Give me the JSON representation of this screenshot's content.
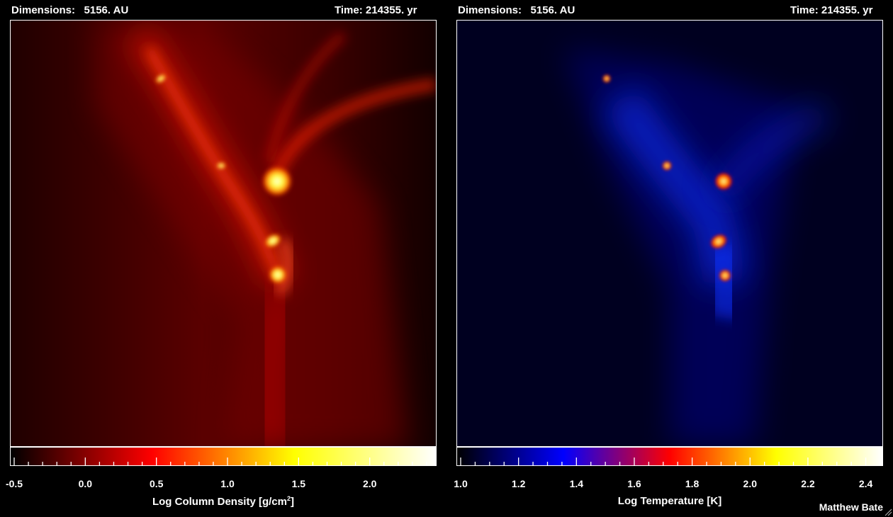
{
  "left_panel": {
    "dimensions_label": "Dimensions:",
    "dimensions_value": "5156. AU",
    "time_text": "Time: 214355. yr",
    "colorbar": {
      "min": -0.5,
      "max": 2.45,
      "tick_labels": [
        "-0.5",
        "0.0",
        "0.5",
        "1.0",
        "1.5",
        "2.0"
      ],
      "tick_values": [
        -0.5,
        0.0,
        0.5,
        1.0,
        1.5,
        2.0
      ],
      "title": "Log Column Density [g/cm",
      "title_sup": "2",
      "title_end": "]",
      "colors": [
        "#000000",
        "#ff0000",
        "#ffff00",
        "#ffffff"
      ]
    }
  },
  "right_panel": {
    "dimensions_label": "Dimensions:",
    "dimensions_value": "5156. AU",
    "time_text": "Time: 214355. yr",
    "colorbar": {
      "min": 1.0,
      "max": 2.45,
      "tick_labels": [
        "1.0",
        "1.2",
        "1.4",
        "1.6",
        "1.8",
        "2.0",
        "2.2",
        "2.4"
      ],
      "tick_values": [
        1.0,
        1.2,
        1.4,
        1.6,
        1.8,
        2.0,
        2.2,
        2.4
      ],
      "title": "Log Temperature [K]",
      "colors": [
        "#000000",
        "#0000ff",
        "#ff0000",
        "#ffff00",
        "#ffffff"
      ]
    }
  },
  "credit": "Matthew Bate"
}
